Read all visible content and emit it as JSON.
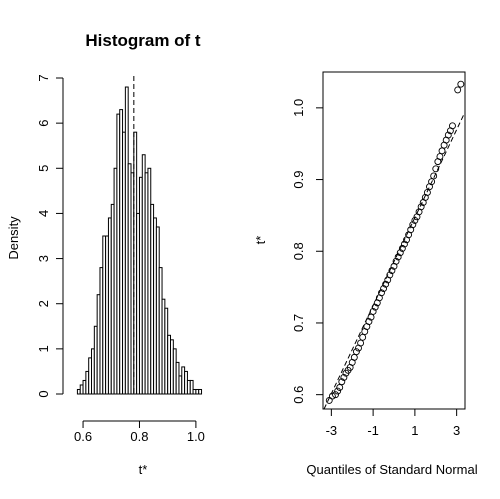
{
  "chart_data": [
    {
      "type": "bar",
      "title": "Histogram of t",
      "xlabel": "t*",
      "ylabel": "Density",
      "xlim": [
        0.575,
        1.05
      ],
      "ylim": [
        0,
        7
      ],
      "x_ticks": [
        "0.6",
        "0.8",
        "1.0"
      ],
      "y_ticks": [
        "0",
        "1",
        "2",
        "3",
        "4",
        "5",
        "6",
        "7"
      ],
      "reference_line": {
        "x": 0.78,
        "style": "dashed"
      },
      "bin_width": 0.01,
      "bin_start": 0.58,
      "values": [
        0.1,
        0.2,
        0.3,
        0.5,
        0.8,
        1.0,
        1.5,
        2.2,
        2.8,
        3.5,
        3.5,
        3.9,
        4.2,
        5.0,
        6.2,
        6.3,
        5.8,
        6.8,
        5.1,
        4.9,
        5.8,
        4.0,
        4.8,
        5.3,
        4.9,
        5.0,
        4.2,
        3.9,
        3.7,
        2.8,
        2.1,
        1.9,
        1.3,
        1.2,
        1.0,
        0.7,
        0.4,
        0.6,
        0.5,
        0.3,
        0.3,
        0.1,
        0.1,
        0.1
      ]
    },
    {
      "type": "scatter",
      "title": "",
      "xlabel": "Quantiles of Standard Normal",
      "ylabel": "t*",
      "xlim": [
        -3.4,
        3.4
      ],
      "ylim": [
        0.58,
        1.05
      ],
      "x_ticks": [
        "-3",
        "-1",
        "1",
        "3"
      ],
      "y_ticks": [
        "0.6",
        "0.7",
        "0.8",
        "0.9",
        "1.0"
      ],
      "reference_line": {
        "intercept": 0.78,
        "slope": 0.063,
        "style": "dashed"
      },
      "marker": "open-circle",
      "points": [
        [
          -3.1,
          0.592
        ],
        [
          -2.95,
          0.598
        ],
        [
          -2.8,
          0.6
        ],
        [
          -2.7,
          0.605
        ],
        [
          -2.6,
          0.61
        ],
        [
          -2.5,
          0.618
        ],
        [
          -2.4,
          0.624
        ],
        [
          -2.3,
          0.63
        ],
        [
          -2.2,
          0.634
        ],
        [
          -2.1,
          0.638
        ],
        [
          -2.0,
          0.645
        ],
        [
          -1.9,
          0.652
        ],
        [
          -1.8,
          0.66
        ],
        [
          -1.7,
          0.665
        ],
        [
          -1.6,
          0.672
        ],
        [
          -1.5,
          0.68
        ],
        [
          -1.4,
          0.688
        ],
        [
          -1.3,
          0.695
        ],
        [
          -1.2,
          0.702
        ],
        [
          -1.1,
          0.708
        ],
        [
          -1.0,
          0.716
        ],
        [
          -0.9,
          0.722
        ],
        [
          -0.8,
          0.728
        ],
        [
          -0.7,
          0.735
        ],
        [
          -0.6,
          0.742
        ],
        [
          -0.5,
          0.748
        ],
        [
          -0.4,
          0.754
        ],
        [
          -0.3,
          0.76
        ],
        [
          -0.2,
          0.767
        ],
        [
          -0.1,
          0.773
        ],
        [
          0.0,
          0.779
        ],
        [
          0.1,
          0.786
        ],
        [
          0.2,
          0.792
        ],
        [
          0.3,
          0.798
        ],
        [
          0.4,
          0.804
        ],
        [
          0.5,
          0.81
        ],
        [
          0.6,
          0.816
        ],
        [
          0.7,
          0.823
        ],
        [
          0.8,
          0.83
        ],
        [
          0.9,
          0.837
        ],
        [
          1.0,
          0.843
        ],
        [
          1.1,
          0.848
        ],
        [
          1.2,
          0.855
        ],
        [
          1.3,
          0.862
        ],
        [
          1.4,
          0.868
        ],
        [
          1.5,
          0.875
        ],
        [
          1.6,
          0.882
        ],
        [
          1.7,
          0.89
        ],
        [
          1.8,
          0.897
        ],
        [
          1.9,
          0.905
        ],
        [
          2.0,
          0.915
        ],
        [
          2.1,
          0.925
        ],
        [
          2.2,
          0.932
        ],
        [
          2.3,
          0.94
        ],
        [
          2.4,
          0.948
        ],
        [
          2.5,
          0.955
        ],
        [
          2.6,
          0.962
        ],
        [
          2.7,
          0.968
        ],
        [
          2.8,
          0.975
        ],
        [
          3.05,
          1.025
        ],
        [
          3.2,
          1.033
        ]
      ]
    }
  ]
}
